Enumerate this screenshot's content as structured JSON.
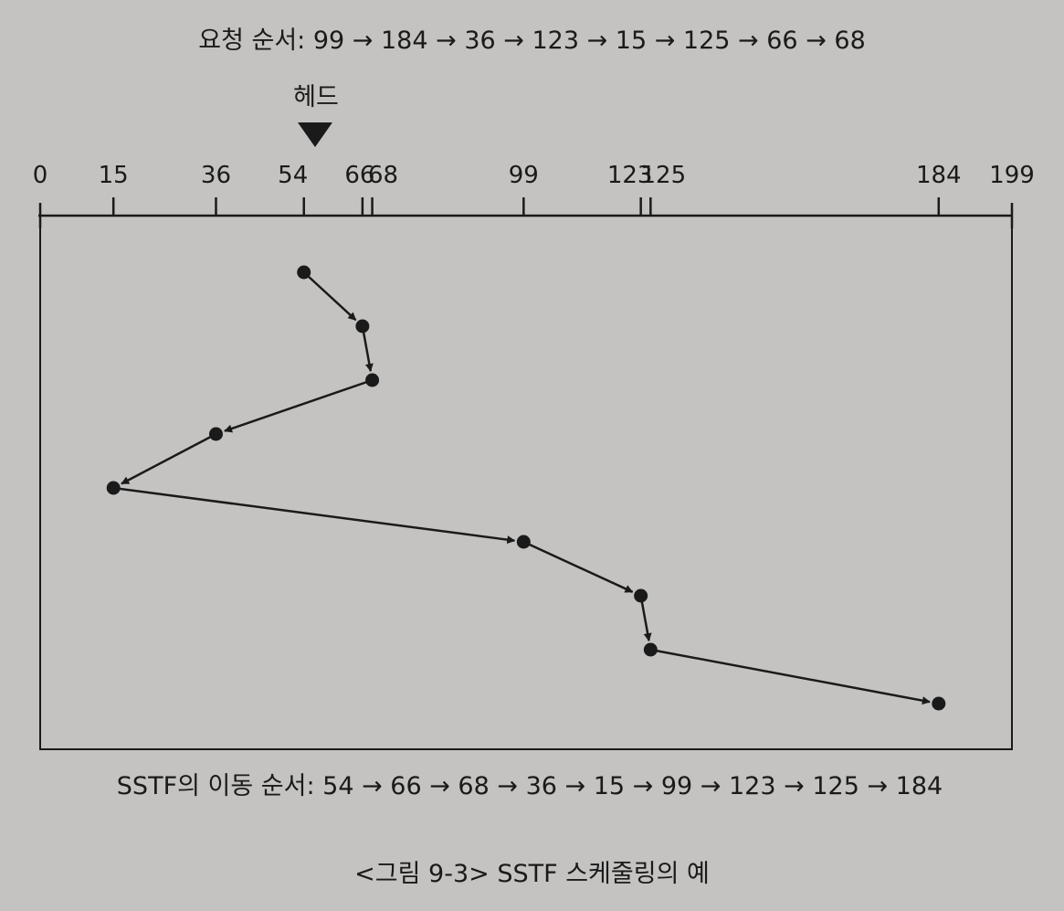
{
  "request_sequence": {
    "label": "요청 순서: 99 → 184 → 36 → 123 → 15 → 125 → 66 → 68",
    "values": [
      99,
      184,
      36,
      123,
      15,
      125,
      66,
      68
    ]
  },
  "head": {
    "label": "헤드",
    "position": 54
  },
  "axis": {
    "min": 0,
    "max": 199,
    "ticks": [
      0,
      15,
      36,
      54,
      66,
      68,
      99,
      123,
      125,
      184,
      199
    ]
  },
  "sstf_sequence": {
    "label": "SSTF의 이동 순서: 54 → 66 → 68 → 36 → 15 → 99 → 123 → 125 → 184",
    "values": [
      54,
      66,
      68,
      36,
      15,
      99,
      123,
      125,
      184
    ]
  },
  "caption": "<그림 9-3> SSTF 스케줄링의 예",
  "colors": {
    "ink": "#1a1a1a",
    "background": "#c4c3c1"
  }
}
